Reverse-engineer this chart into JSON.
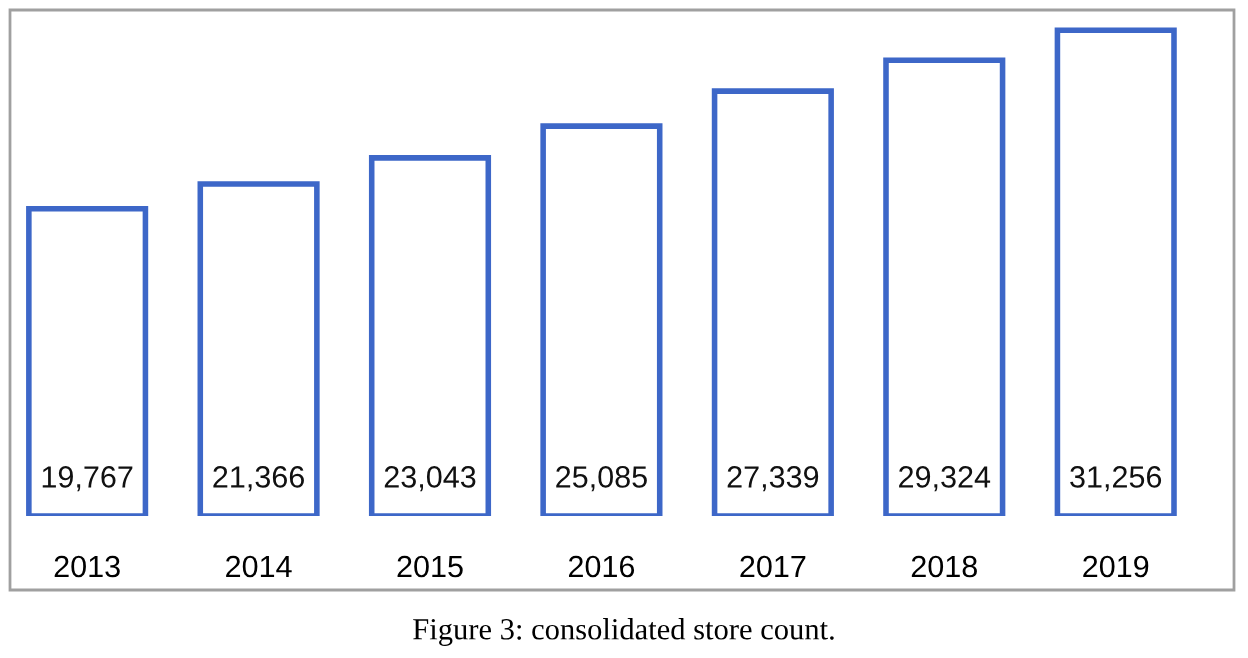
{
  "chart_data": {
    "type": "bar",
    "title": "Figure 3: consolidated store count.",
    "categories": [
      "2013",
      "2014",
      "2015",
      "2016",
      "2017",
      "2018",
      "2019"
    ],
    "values": [
      19767,
      21366,
      23043,
      25085,
      27339,
      29324,
      31256
    ],
    "value_labels": [
      "19,767",
      "21,366",
      "23,043",
      "25,085",
      "27,339",
      "29,324",
      "31,256"
    ],
    "color": "#3d67c8",
    "tick_labels": "x"
  }
}
